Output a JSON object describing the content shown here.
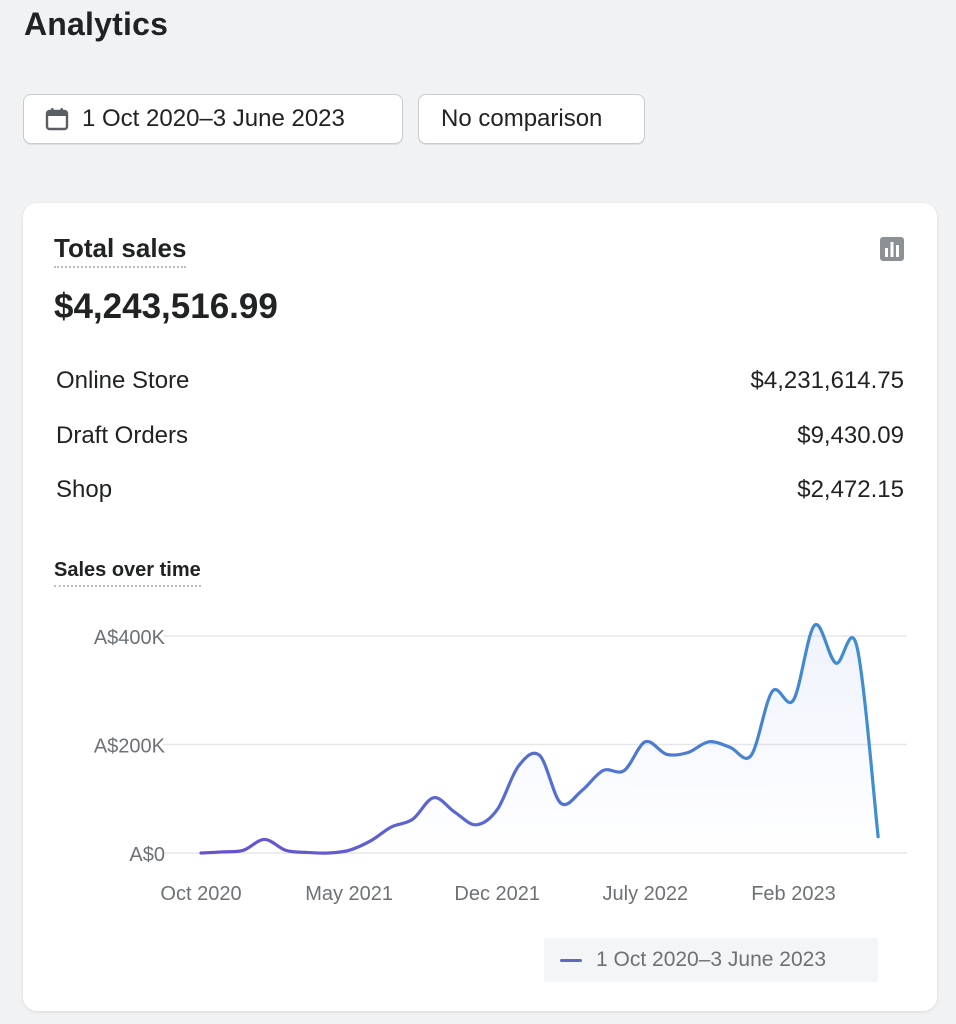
{
  "header": {
    "title": "Analytics"
  },
  "filters": {
    "date_range": "1 Oct 2020–3 June 2023",
    "comparison": "No comparison"
  },
  "total_sales": {
    "title": "Total sales",
    "value": "$4,243,516.99",
    "breakdown": [
      {
        "label": "Online Store",
        "value": "$4,231,614.75"
      },
      {
        "label": "Draft Orders",
        "value": "$9,430.09"
      },
      {
        "label": "Shop",
        "value": "$2,472.15"
      }
    ]
  },
  "colors": {
    "line_start": "#6a4fd0",
    "line_end": "#3f8fd0",
    "grid": "#e6e7e9"
  },
  "chart_data": {
    "type": "line",
    "title": "Sales over time",
    "x_tick_labels": [
      "Oct 2020",
      "May 2021",
      "Dec 2021",
      "July 2022",
      "Feb 2023"
    ],
    "y_tick_labels": [
      "A$0",
      "A$200K",
      "A$400K"
    ],
    "ylim": [
      0,
      400000
    ],
    "grid": true,
    "legend": {
      "placement": "bottom-right",
      "label": "1 Oct 2020–3 June 2023"
    },
    "series": [
      {
        "name": "1 Oct 2020–3 June 2023",
        "x": [
          "2020-10",
          "2020-11",
          "2020-12",
          "2021-01",
          "2021-02",
          "2021-03",
          "2021-04",
          "2021-05",
          "2021-06",
          "2021-07",
          "2021-08",
          "2021-09",
          "2021-10",
          "2021-11",
          "2021-12",
          "2022-01",
          "2022-02",
          "2022-03",
          "2022-04",
          "2022-05",
          "2022-06",
          "2022-07",
          "2022-08",
          "2022-09",
          "2022-10",
          "2022-11",
          "2022-12",
          "2023-01",
          "2023-02",
          "2023-03",
          "2023-04",
          "2023-05",
          "2023-06"
        ],
        "values": [
          0,
          2000,
          5000,
          25000,
          5000,
          1000,
          0,
          5000,
          22000,
          48000,
          62000,
          102000,
          75000,
          52000,
          80000,
          160000,
          180000,
          92000,
          115000,
          152000,
          152000,
          205000,
          182000,
          185000,
          205000,
          195000,
          180000,
          298000,
          282000,
          420000,
          350000,
          380000,
          30000
        ]
      }
    ]
  }
}
